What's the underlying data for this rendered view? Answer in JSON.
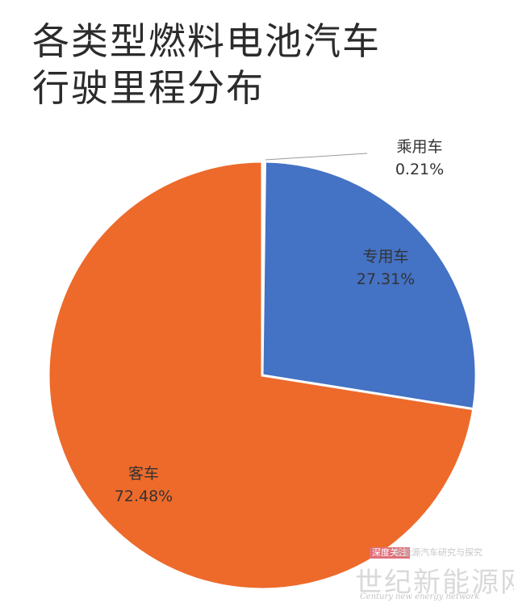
{
  "title_line1": "各类型燃料电池汽车",
  "title_line2": "行驶里程分布",
  "chart_data": {
    "type": "pie",
    "title": "各类型燃料电池汽车行驶里程分布",
    "slices": [
      {
        "label": "乘用车",
        "value_text": "0.21%",
        "value": 0.21,
        "color": "#f0f0f0"
      },
      {
        "label": "专用车",
        "value_text": "27.31%",
        "value": 27.31,
        "color": "#4472c4"
      },
      {
        "label": "客车",
        "value_text": "72.48%",
        "value": 72.48,
        "color": "#ed6a2b"
      }
    ]
  },
  "watermark": {
    "tag": "深度关注",
    "sub": "新能源汽车研究与探究",
    "main": "世纪新能源网",
    "en": "Century new energy network"
  }
}
